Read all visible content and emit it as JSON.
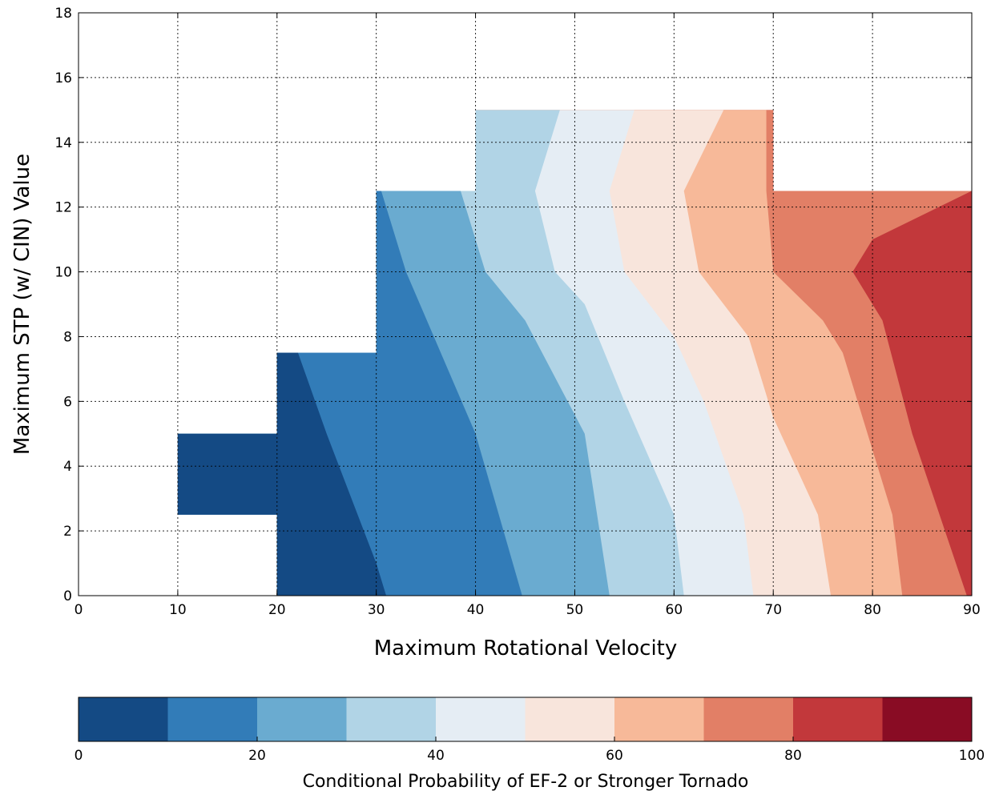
{
  "chart_data": {
    "type": "contour",
    "xlabel": "Maximum Rotational Velocity",
    "ylabel": "Maximum STP (w/ CIN) Value",
    "xlim": [
      0,
      90
    ],
    "ylim": [
      0,
      18
    ],
    "x_ticks": [
      "0",
      "10",
      "20",
      "30",
      "40",
      "50",
      "60",
      "70",
      "80",
      "90"
    ],
    "y_ticks": [
      "0",
      "2",
      "4",
      "6",
      "8",
      "10",
      "12",
      "14",
      "16",
      "18"
    ],
    "grid": true,
    "domain_rows": [
      {
        "y": [
          0,
          2.5
        ],
        "x": [
          20,
          90
        ]
      },
      {
        "y": [
          2.5,
          5
        ],
        "x": [
          10,
          90
        ]
      },
      {
        "y": [
          5,
          7.5
        ],
        "x": [
          20,
          90
        ]
      },
      {
        "y": [
          7.5,
          12.5
        ],
        "x": [
          30,
          90
        ]
      },
      {
        "y": [
          12.5,
          15
        ],
        "x": [
          40,
          70
        ]
      }
    ],
    "contour_boundaries": [
      {
        "level": 10,
        "points": [
          [
            31,
            0
          ],
          [
            30,
            1
          ],
          [
            25,
            5
          ],
          [
            22,
            7.6
          ]
        ]
      },
      {
        "level": 20,
        "points": [
          [
            44.7,
            0
          ],
          [
            40,
            5
          ],
          [
            33,
            10
          ],
          [
            30.5,
            12.5
          ]
        ]
      },
      {
        "level": 30,
        "points": [
          [
            53.5,
            0
          ],
          [
            51,
            5
          ],
          [
            45,
            8.5
          ],
          [
            41,
            10
          ],
          [
            38.5,
            12.5
          ]
        ]
      },
      {
        "level": 40,
        "points": [
          [
            61,
            0
          ],
          [
            60,
            2.5
          ],
          [
            55,
            6
          ],
          [
            51,
            9
          ],
          [
            48,
            10
          ],
          [
            46,
            12.5
          ],
          [
            48.5,
            15
          ]
        ]
      },
      {
        "level": 50,
        "points": [
          [
            68,
            0
          ],
          [
            67,
            2.5
          ],
          [
            63,
            6
          ],
          [
            60,
            8
          ],
          [
            55,
            10
          ],
          [
            53.5,
            12.5
          ],
          [
            56,
            15
          ]
        ]
      },
      {
        "level": 60,
        "points": [
          [
            75.8,
            0
          ],
          [
            74.5,
            2.5
          ],
          [
            70,
            5.5
          ],
          [
            67.5,
            8
          ],
          [
            62.5,
            10
          ],
          [
            61,
            12.5
          ],
          [
            65,
            15
          ]
        ]
      },
      {
        "level": 70,
        "points": [
          [
            83,
            0
          ],
          [
            82,
            2.5
          ],
          [
            77,
            7.5
          ],
          [
            75,
            8.5
          ],
          [
            70,
            10
          ],
          [
            69.3,
            12.5
          ]
        ]
      },
      {
        "level": 80,
        "points": [
          [
            89.5,
            0
          ],
          [
            84,
            5
          ],
          [
            81,
            8.5
          ],
          [
            78,
            10
          ],
          [
            80,
            11
          ],
          [
            90,
            12.5
          ]
        ]
      }
    ],
    "colorbar": {
      "label": "Conditional Probability of EF-2 or Stronger Tornado",
      "ticks": [
        "0",
        "20",
        "40",
        "60",
        "80",
        "100"
      ],
      "levels": [
        0,
        10,
        20,
        30,
        40,
        50,
        60,
        70,
        80,
        90,
        100
      ],
      "colors": [
        "#144a84",
        "#327cb8",
        "#6aabd0",
        "#b1d4e6",
        "#e5edf4",
        "#f8e5dc",
        "#f7b999",
        "#e27f66",
        "#c2383b",
        "#890c24"
      ]
    }
  }
}
